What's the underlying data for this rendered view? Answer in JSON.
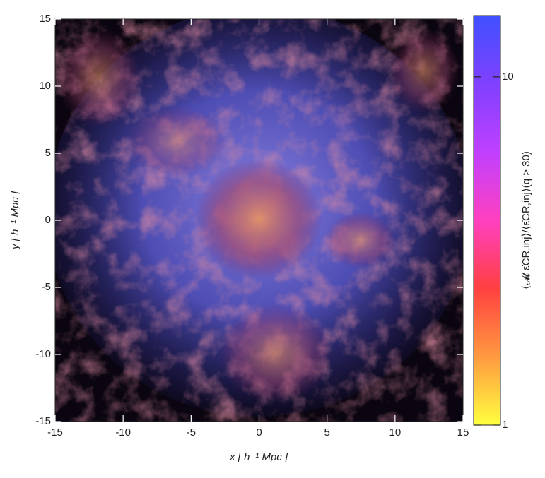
{
  "chart_data": {
    "type": "image",
    "xlabel": "x [ h⁻¹ Mpc ]",
    "ylabel": "y [ h⁻¹ Mpc ]",
    "xlim": [
      -15,
      15
    ],
    "ylim": [
      -15,
      15
    ],
    "xticks": [
      -15,
      -10,
      -5,
      0,
      5,
      10,
      15
    ],
    "yticks": [
      -15,
      -10,
      -5,
      0,
      5,
      10,
      15
    ],
    "colorbar": {
      "label": "⟨𝓜 ε̇CR,inj⟩/⟨ε̇CR,inj⟩(q > 30)",
      "log": true,
      "lim": [
        1,
        15
      ],
      "ticks": [
        1,
        10
      ],
      "colors": [
        "#ffff40",
        "#ff9a40",
        "#ff4040",
        "#ff40c0",
        "#c040ff",
        "#8040ff",
        "#4050ff"
      ]
    }
  }
}
